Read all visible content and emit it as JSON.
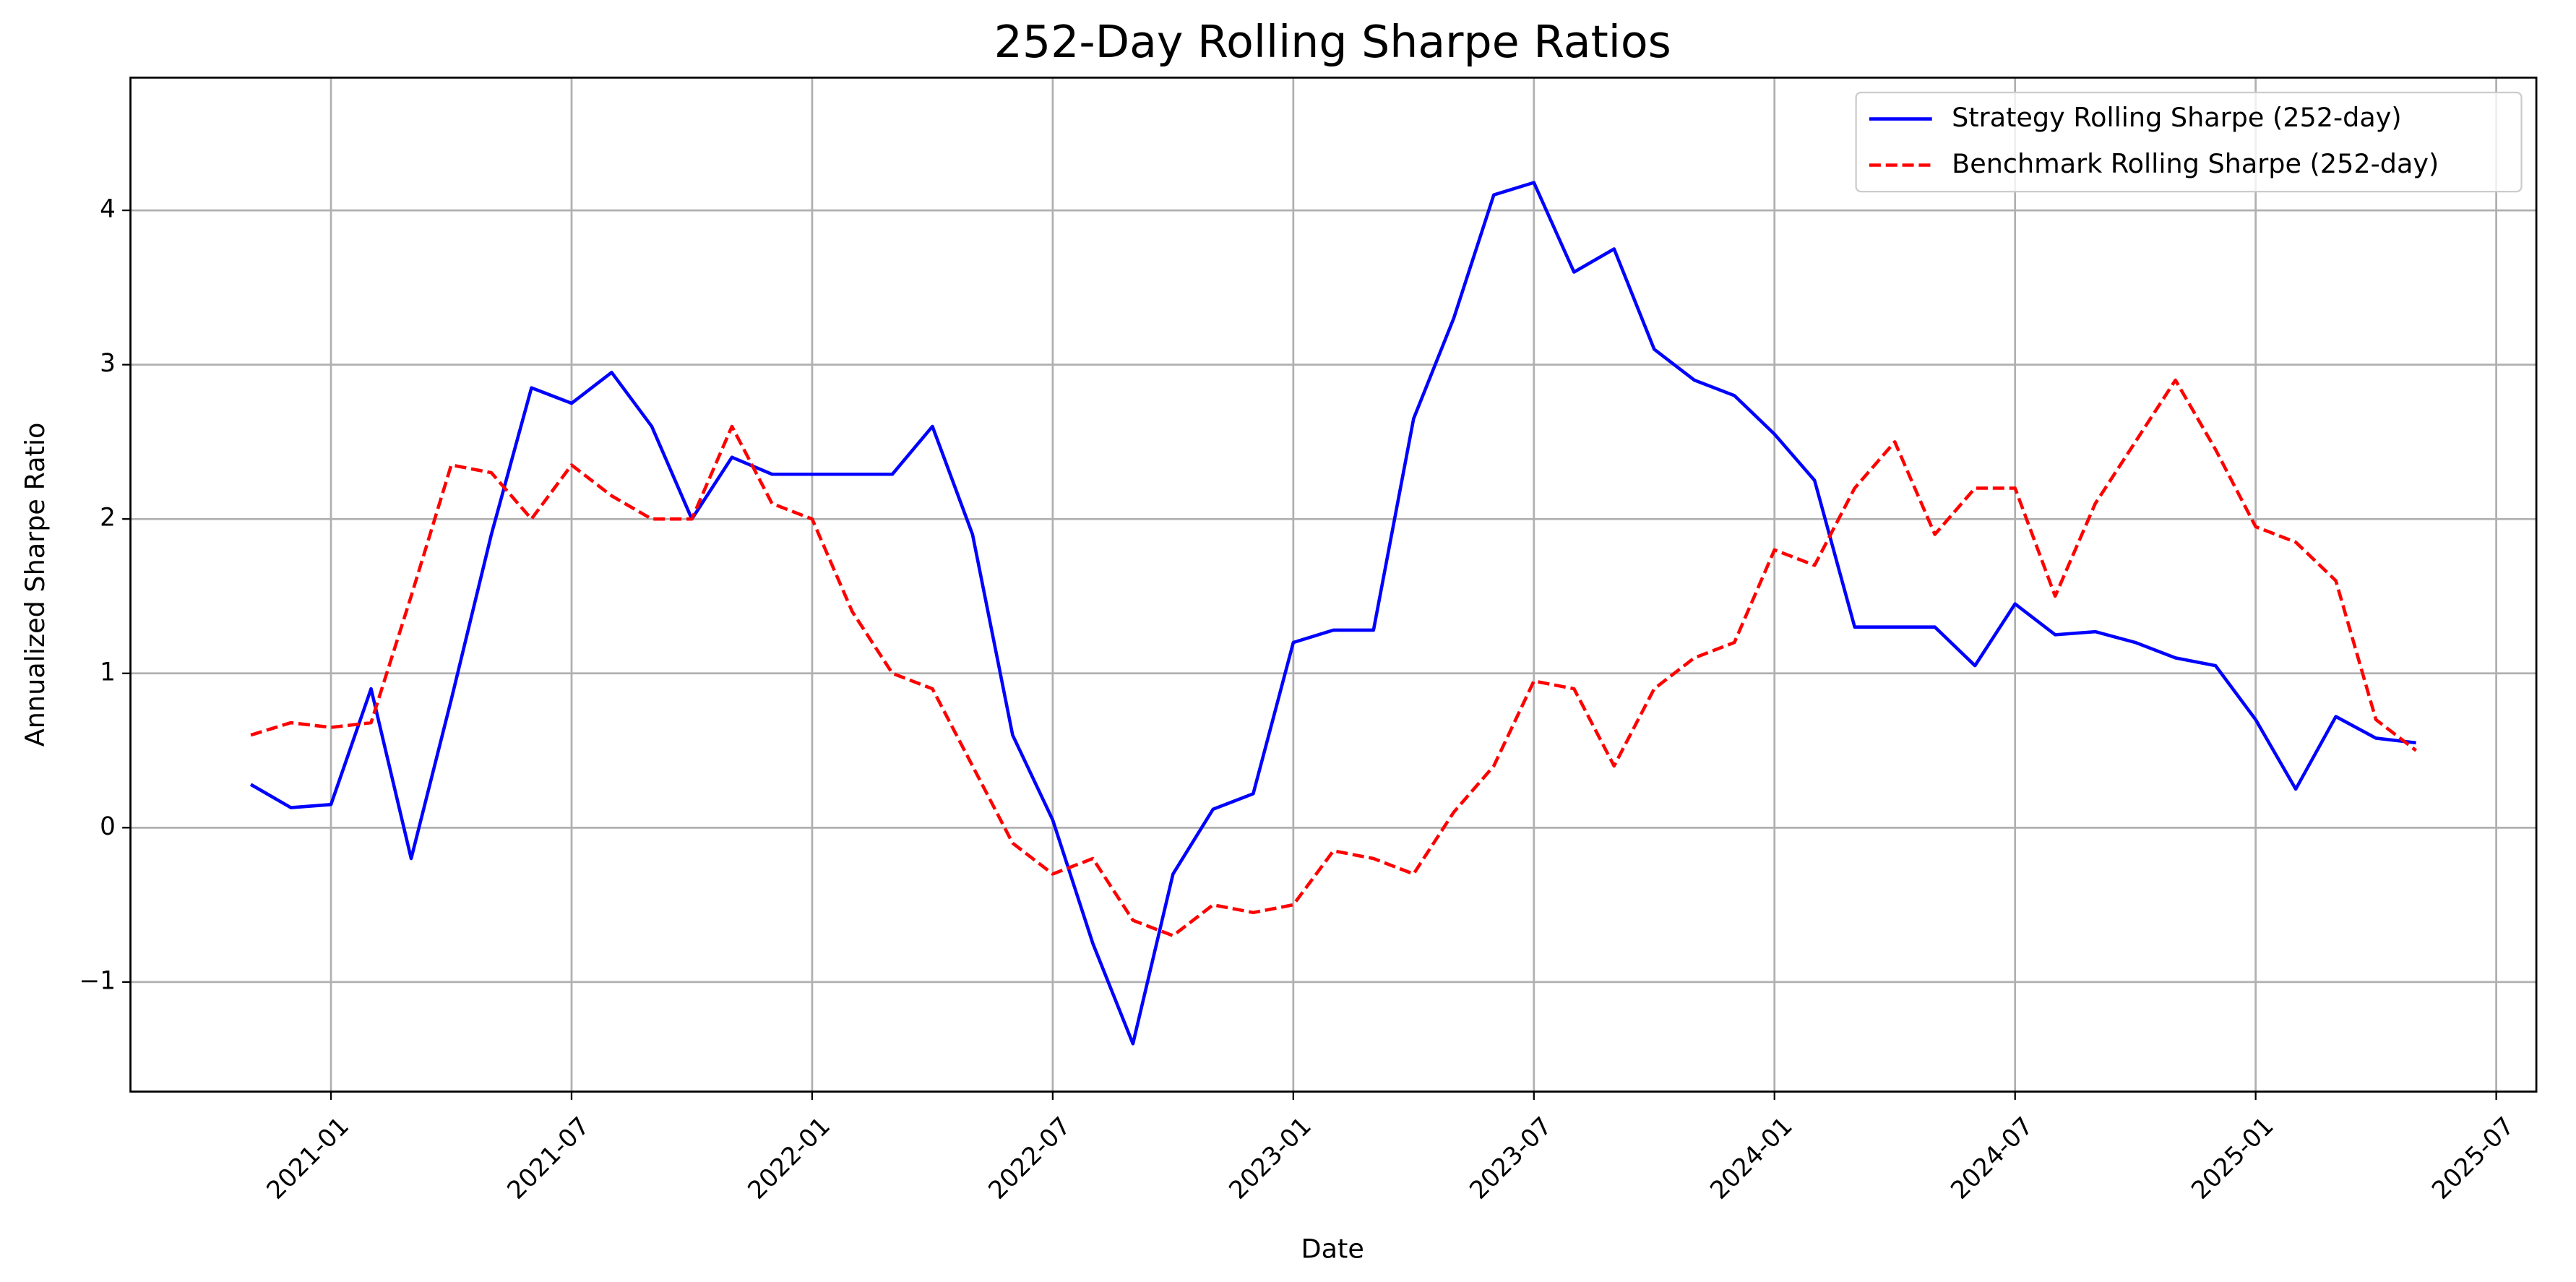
{
  "chart_data": {
    "type": "line",
    "title": "252-Day Rolling Sharpe Ratios",
    "xlabel": "Date",
    "ylabel": "Annualized Sharpe Ratio",
    "x": [
      "2020-11",
      "2020-12",
      "2021-01",
      "2021-02",
      "2021-03",
      "2021-04",
      "2021-05",
      "2021-06",
      "2021-07",
      "2021-08",
      "2021-09",
      "2021-10",
      "2021-11",
      "2021-12",
      "2022-01",
      "2022-02",
      "2022-03",
      "2022-04",
      "2022-05",
      "2022-06",
      "2022-07",
      "2022-08",
      "2022-09",
      "2022-10",
      "2022-11",
      "2022-12",
      "2023-01",
      "2023-02",
      "2023-03",
      "2023-04",
      "2023-05",
      "2023-06",
      "2023-07",
      "2023-08",
      "2023-09",
      "2023-10",
      "2023-11",
      "2023-12",
      "2024-01",
      "2024-02",
      "2024-03",
      "2024-04",
      "2024-05",
      "2024-06",
      "2024-07",
      "2024-08",
      "2024-09",
      "2024-10",
      "2024-11",
      "2024-12",
      "2025-01",
      "2025-02",
      "2025-03",
      "2025-04",
      "2025-05"
    ],
    "series": [
      {
        "name": "Strategy Rolling Sharpe (252-day)",
        "color": "#0000ff",
        "linestyle": "solid",
        "values": [
          0.28,
          0.13,
          0.15,
          0.9,
          -0.2,
          0.83,
          1.9,
          2.85,
          2.75,
          2.95,
          2.6,
          2.0,
          2.4,
          2.29,
          2.29,
          2.29,
          2.29,
          2.6,
          1.9,
          0.6,
          0.05,
          -0.75,
          -1.4,
          -0.3,
          0.12,
          0.22,
          1.2,
          1.28,
          1.28,
          2.65,
          3.3,
          4.1,
          4.18,
          3.6,
          3.75,
          3.1,
          2.9,
          2.8,
          2.55,
          2.25,
          1.3,
          1.3,
          1.3,
          1.05,
          1.45,
          1.25,
          1.27,
          1.2,
          1.1,
          1.05,
          0.7,
          0.25,
          0.72,
          0.58,
          0.55
        ]
      },
      {
        "name": "Benchmark Rolling Sharpe (252-day)",
        "color": "#ff0000",
        "linestyle": "dashed",
        "values": [
          0.6,
          0.68,
          0.65,
          0.68,
          1.5,
          2.35,
          2.3,
          2.0,
          2.35,
          2.15,
          2.0,
          2.0,
          2.6,
          2.1,
          2.0,
          1.4,
          1.0,
          0.9,
          0.4,
          -0.1,
          -0.3,
          -0.2,
          -0.6,
          -0.7,
          -0.5,
          -0.55,
          -0.5,
          -0.15,
          -0.2,
          -0.3,
          0.1,
          0.4,
          0.95,
          0.9,
          0.4,
          0.9,
          1.1,
          1.2,
          1.8,
          1.7,
          2.2,
          2.5,
          1.9,
          2.2,
          2.2,
          1.5,
          2.1,
          2.5,
          2.9,
          2.45,
          1.95,
          1.85,
          1.6,
          0.7,
          0.5
        ]
      }
    ],
    "xlim": [
      "2020-08",
      "2025-08"
    ],
    "xticks": [
      "2021-01",
      "2021-07",
      "2022-01",
      "2022-07",
      "2023-01",
      "2023-07",
      "2024-01",
      "2024-07",
      "2025-01",
      "2025-07"
    ],
    "ylim": [
      -1.71,
      4.86
    ],
    "yticks": [
      {
        "value": -1,
        "label": "−1"
      },
      0,
      1,
      2,
      3,
      4
    ],
    "grid": true,
    "legend": "upper-right"
  }
}
